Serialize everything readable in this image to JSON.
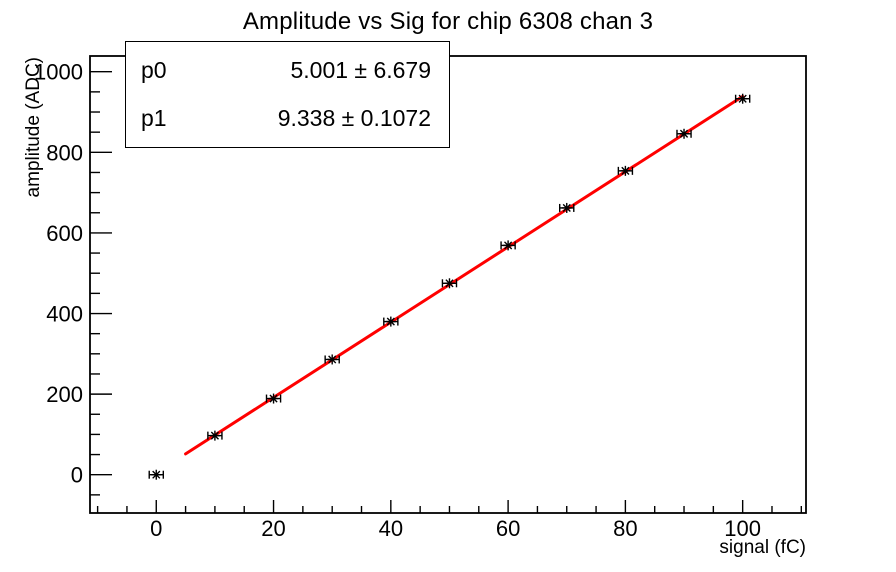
{
  "title": "Amplitude vs Sig for chip 6308 chan 3",
  "stats_box": {
    "rows": [
      {
        "param": "p0",
        "value": "5.001 ± 6.679"
      },
      {
        "param": "p1",
        "value": "9.338 ± 0.1072"
      }
    ]
  },
  "axes": {
    "xlabel": "signal (fC)",
    "ylabel": "amplitude (ADC)"
  },
  "chart_data": {
    "type": "scatter",
    "title": "Amplitude vs Sig for chip 6308 chan 3",
    "xlabel": "signal (fC)",
    "ylabel": "amplitude (ADC)",
    "x": [
      0,
      10,
      20,
      30,
      40,
      50,
      60,
      70,
      80,
      90,
      100
    ],
    "y": [
      0,
      97,
      189,
      286,
      380,
      475,
      569,
      662,
      754,
      846,
      933
    ],
    "x_error": 1.2,
    "marker_style": "asterisk",
    "fit": {
      "label": "linear",
      "p0": 5.001,
      "p0_err": 6.679,
      "p1": 9.338,
      "p1_err": 0.1072,
      "line_x_start": 5,
      "line_x_end": 100
    },
    "xlim": [
      -11.3,
      110.8
    ],
    "ylim": [
      -95,
      1039
    ],
    "x_major_ticks": [
      0,
      20,
      40,
      60,
      80,
      100
    ],
    "x_minor_step": 5,
    "y_major_ticks": [
      0,
      200,
      400,
      600,
      800,
      1000
    ],
    "y_minor_step": 50,
    "grid": false,
    "legend_position": "none",
    "colors": {
      "fit_line": "#ff0000",
      "marker": "#000000",
      "axis": "#000000",
      "background": "#ffffff"
    }
  }
}
